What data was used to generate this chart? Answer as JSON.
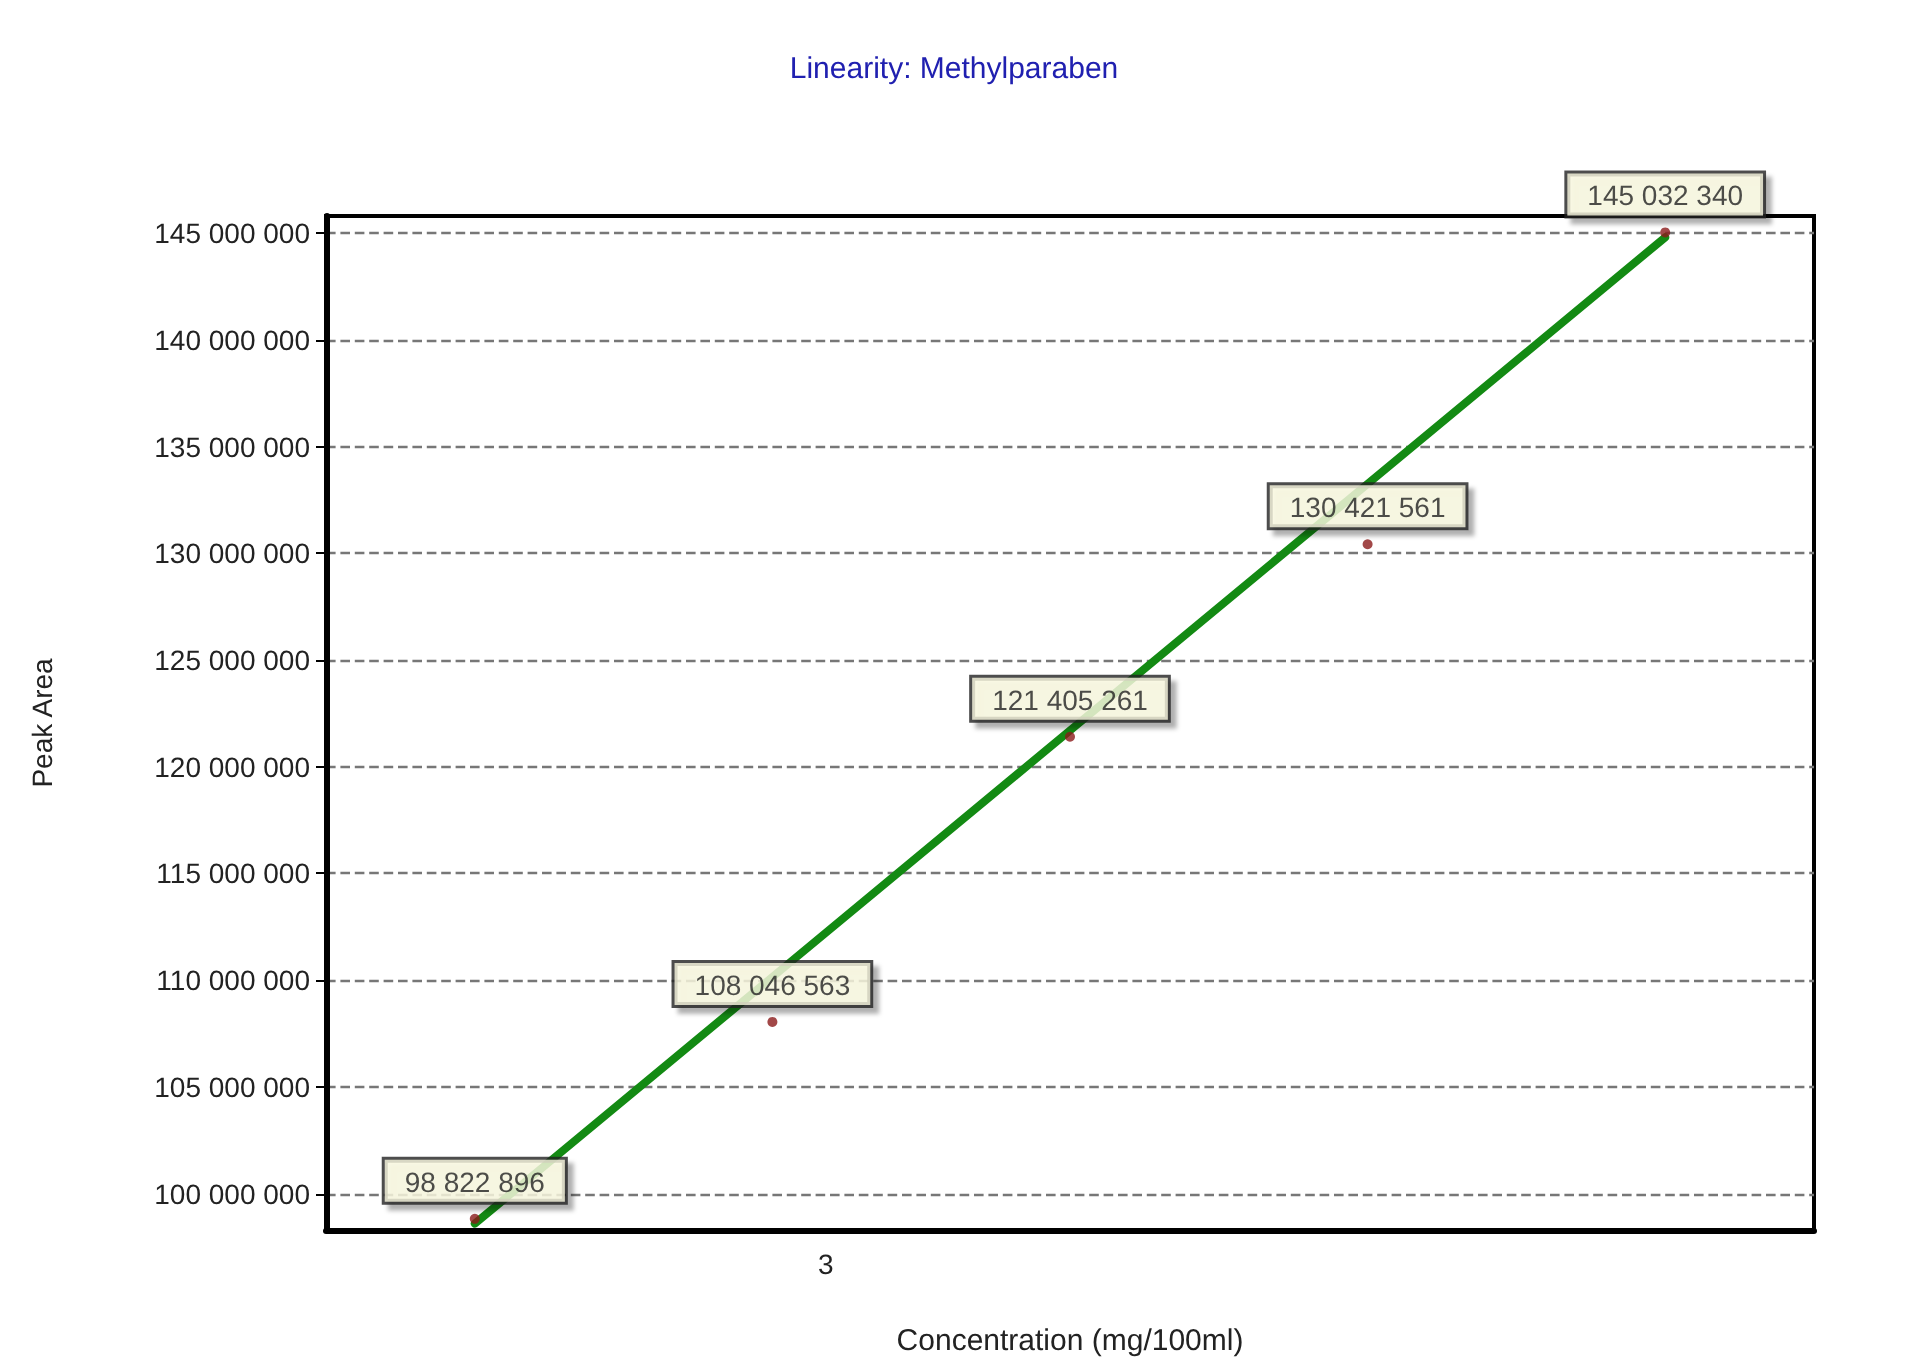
{
  "chart_data": {
    "type": "scatter",
    "title": "Linearity: Methylparaben",
    "xlabel": "Concentration (mg/100ml)",
    "ylabel": "Peak Area",
    "categories": [
      null,
      null,
      null,
      null,
      null
    ],
    "annotations": [
      "3"
    ],
    "ylim": [
      98300000,
      145800000
    ],
    "yticks": [
      {
        "value": 100000000,
        "label": "100 000 000"
      },
      {
        "value": 105000000,
        "label": "105 000 000"
      },
      {
        "value": 110000000,
        "label": "110 000 000"
      },
      {
        "value": 115000000,
        "label": "115 000 000"
      },
      {
        "value": 120000000,
        "label": "120 000 000"
      },
      {
        "value": 125000000,
        "label": "125 000 000"
      },
      {
        "value": 130000000,
        "label": "130 000 000"
      },
      {
        "value": 135000000,
        "label": "135 000 000"
      },
      {
        "value": 140000000,
        "label": "140 000 000"
      },
      {
        "value": 145000000,
        "label": "145 000 000"
      }
    ],
    "grid": "y",
    "marker": "circle",
    "series": [
      {
        "type": "line",
        "color": "#138a13",
        "values": [
          98600000,
          null,
          null,
          null,
          144800000
        ],
        "marker": "none",
        "line_style": "solid"
      },
      {
        "color": "#8b1a1a",
        "values": [
          98822896,
          108046563,
          121405261,
          130421561,
          145032340
        ],
        "value_labels": [
          "98 822 896",
          "108 046 563",
          "121 405 261",
          "130 421 561",
          "145 032 340"
        ]
      }
    ]
  }
}
